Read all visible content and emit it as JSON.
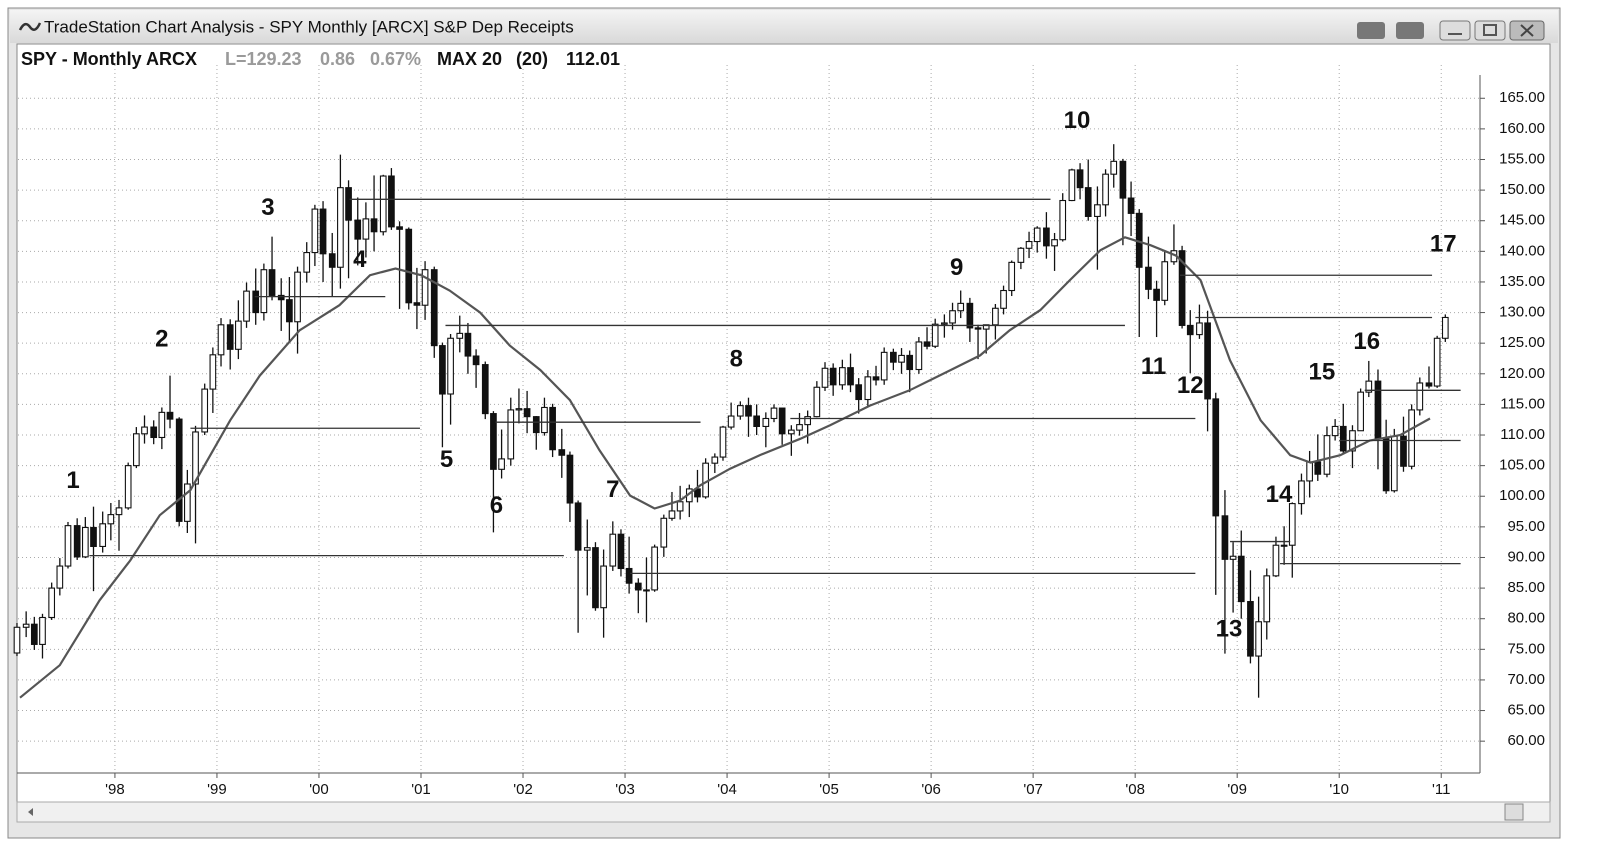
{
  "chart_data": {
    "type": "candlestick",
    "title": "TradeStation Chart Analysis - SPY Monthly [ARCX] S&P Dep Receipts",
    "symbol": "SPY - Monthly ARCX",
    "last": "L=129.23",
    "change": "0.86",
    "change_pct": "0.67%",
    "indicator": "MAX 20",
    "indicator_length": "(20)",
    "indicator_value": "112.01",
    "xlim": [
      1997.05,
      2011.38
    ],
    "ylim": [
      54.8,
      168.8
    ],
    "grid": true,
    "xticks": [
      {
        "value": 1998,
        "label": "'98"
      },
      {
        "value": 1999,
        "label": "'99"
      },
      {
        "value": 2000,
        "label": "'00"
      },
      {
        "value": 2001,
        "label": "'01"
      },
      {
        "value": 2002,
        "label": "'02"
      },
      {
        "value": 2003,
        "label": "'03"
      },
      {
        "value": 2004,
        "label": "'04"
      },
      {
        "value": 2005,
        "label": "'05"
      },
      {
        "value": 2006,
        "label": "'06"
      },
      {
        "value": 2007,
        "label": "'07"
      },
      {
        "value": 2008,
        "label": "'08"
      },
      {
        "value": 2009,
        "label": "'09"
      },
      {
        "value": 2010,
        "label": "'10"
      },
      {
        "value": 2011,
        "label": "'11"
      }
    ],
    "yticks": [
      {
        "value": 60,
        "label": "60.00"
      },
      {
        "value": 65,
        "label": "65.00"
      },
      {
        "value": 70,
        "label": "70.00"
      },
      {
        "value": 75,
        "label": "75.00"
      },
      {
        "value": 80,
        "label": "80.00"
      },
      {
        "value": 85,
        "label": "85.00"
      },
      {
        "value": 90,
        "label": "90.00"
      },
      {
        "value": 95,
        "label": "95.00"
      },
      {
        "value": 100,
        "label": "100.00"
      },
      {
        "value": 105,
        "label": "105.00"
      },
      {
        "value": 110,
        "label": "110.00"
      },
      {
        "value": 115,
        "label": "115.00"
      },
      {
        "value": 120,
        "label": "120.00"
      },
      {
        "value": 125,
        "label": "125.00"
      },
      {
        "value": 130,
        "label": "130.00"
      },
      {
        "value": 135,
        "label": "135.00"
      },
      {
        "value": 140,
        "label": "140.00"
      },
      {
        "value": 145,
        "label": "145.00"
      },
      {
        "value": 150,
        "label": "150.00"
      },
      {
        "value": 155,
        "label": "155.00"
      },
      {
        "value": 160,
        "label": "160.00"
      },
      {
        "value": 165,
        "label": "165.00"
      }
    ],
    "up_color": "#ffffff",
    "down_color": "#111111",
    "x": [
      1997.04,
      1997.13,
      1997.21,
      1997.29,
      1997.38,
      1997.46,
      1997.54,
      1997.63,
      1997.71,
      1997.79,
      1997.88,
      1997.96,
      1998.04,
      1998.13,
      1998.21,
      1998.29,
      1998.38,
      1998.46,
      1998.54,
      1998.63,
      1998.71,
      1998.79,
      1998.88,
      1998.96,
      1999.04,
      1999.13,
      1999.21,
      1999.29,
      1999.38,
      1999.46,
      1999.54,
      1999.63,
      1999.71,
      1999.79,
      1999.88,
      1999.96,
      2000.04,
      2000.13,
      2000.21,
      2000.29,
      2000.38,
      2000.46,
      2000.54,
      2000.63,
      2000.71,
      2000.79,
      2000.88,
      2000.96,
      2001.04,
      2001.13,
      2001.21,
      2001.29,
      2001.38,
      2001.46,
      2001.54,
      2001.63,
      2001.71,
      2001.79,
      2001.88,
      2001.96,
      2002.04,
      2002.13,
      2002.21,
      2002.29,
      2002.38,
      2002.46,
      2002.54,
      2002.63,
      2002.71,
      2002.79,
      2002.88,
      2002.96,
      2003.04,
      2003.13,
      2003.21,
      2003.29,
      2003.38,
      2003.46,
      2003.54,
      2003.63,
      2003.71,
      2003.79,
      2003.88,
      2003.96,
      2004.04,
      2004.13,
      2004.21,
      2004.29,
      2004.38,
      2004.46,
      2004.54,
      2004.63,
      2004.71,
      2004.79,
      2004.88,
      2004.96,
      2005.04,
      2005.13,
      2005.21,
      2005.29,
      2005.38,
      2005.46,
      2005.54,
      2005.63,
      2005.71,
      2005.79,
      2005.88,
      2005.96,
      2006.04,
      2006.13,
      2006.21,
      2006.29,
      2006.38,
      2006.46,
      2006.54,
      2006.63,
      2006.71,
      2006.79,
      2006.88,
      2006.96,
      2007.04,
      2007.13,
      2007.21,
      2007.29,
      2007.38,
      2007.46,
      2007.54,
      2007.63,
      2007.71,
      2007.79,
      2007.88,
      2007.96,
      2008.04,
      2008.13,
      2008.21,
      2008.29,
      2008.38,
      2008.46,
      2008.54,
      2008.63,
      2008.71,
      2008.79,
      2008.88,
      2008.96,
      2009.04,
      2009.13,
      2009.21,
      2009.29,
      2009.38,
      2009.46,
      2009.54,
      2009.63,
      2009.71,
      2009.79,
      2009.88,
      2009.96,
      2010.04,
      2010.13,
      2010.21,
      2010.29,
      2010.38,
      2010.46,
      2010.54,
      2010.63,
      2010.71,
      2010.79,
      2010.88,
      2010.96,
      2011.04
    ],
    "open": [
      74.4,
      78.6,
      79.1,
      75.8,
      80.2,
      85.0,
      88.6,
      95.2,
      90.1,
      94.9,
      91.8,
      95.5,
      97.0,
      98.1,
      105.0,
      110.2,
      111.3,
      109.6,
      113.7,
      112.6,
      95.9,
      102.0,
      110.5,
      117.5,
      123.1,
      128.0,
      124.0,
      128.6,
      133.5,
      130.0,
      137.0,
      132.8,
      132.1,
      128.5,
      136.6,
      139.8,
      146.9,
      139.6,
      137.4,
      150.4,
      145.1,
      142.0,
      145.3,
      143.2,
      152.3,
      144.0,
      143.6,
      131.6,
      131.2,
      137.0,
      124.6,
      116.7,
      125.8,
      126.6,
      122.9,
      121.5,
      113.5,
      104.4,
      106.1,
      114.1,
      114.3,
      113.0,
      110.4,
      114.5,
      107.6,
      106.7,
      98.9,
      91.2,
      91.6,
      81.8,
      88.6,
      93.8,
      88.2,
      85.8,
      84.7,
      84.7,
      91.7,
      96.4,
      97.6,
      99.1,
      101.2,
      99.9,
      105.4,
      106.4,
      111.3,
      113.1,
      114.8,
      113.1,
      111.4,
      112.7,
      114.4,
      110.2,
      110.8,
      111.7,
      113.0,
      117.8,
      120.9,
      118.2,
      121.0,
      118.2,
      115.8,
      119.5,
      119.0,
      123.5,
      121.9,
      123.0,
      120.7,
      125.2,
      124.5,
      128.1,
      128.3,
      130.3,
      131.5,
      127.5,
      127.3,
      128.0,
      130.7,
      133.6,
      138.2,
      140.5,
      141.6,
      143.8,
      140.9,
      141.9,
      148.3,
      153.3,
      150.4,
      145.7,
      147.6,
      152.6,
      154.7,
      148.7,
      146.2,
      137.4,
      133.8,
      132.0,
      138.3,
      140.1,
      127.9,
      126.4,
      128.3,
      115.9,
      96.8,
      89.7,
      90.2,
      82.8,
      73.9,
      79.5,
      87.0,
      92.0,
      92.0,
      98.8,
      102.5,
      105.6,
      103.6,
      109.9,
      111.4,
      107.4,
      110.7,
      117.0,
      118.8,
      109.4,
      100.9,
      109.8,
      104.9,
      114.1,
      118.5,
      118.0,
      125.8
    ],
    "high": [
      79.3,
      81.2,
      80.3,
      80.8,
      85.9,
      89.9,
      95.8,
      96.4,
      96.6,
      98.3,
      97.5,
      98.9,
      99.4,
      105.5,
      111.3,
      113.2,
      112.4,
      114.5,
      119.7,
      112.9,
      104.3,
      111.5,
      118.4,
      124.3,
      129.1,
      128.9,
      132.0,
      134.9,
      137.2,
      138.0,
      142.4,
      135.6,
      135.8,
      137.5,
      141.5,
      147.6,
      148.2,
      143.0,
      155.8,
      151.6,
      148.8,
      148.0,
      152.4,
      152.5,
      153.6,
      144.9,
      143.9,
      137.3,
      138.4,
      137.5,
      125.1,
      126.5,
      129.5,
      128.3,
      124.0,
      122.0,
      113.9,
      110.9,
      116.1,
      117.6,
      117.2,
      113.1,
      116.1,
      115.1,
      111.0,
      107.3,
      99.3,
      96.2,
      92.5,
      91.3,
      95.9,
      94.6,
      93.4,
      86.6,
      90.0,
      92.1,
      97.0,
      100.7,
      101.7,
      101.9,
      104.3,
      106.2,
      107.0,
      111.5,
      115.3,
      115.5,
      116.1,
      115.0,
      113.7,
      115.0,
      114.4,
      111.6,
      113.6,
      114.0,
      118.8,
      121.9,
      121.7,
      122.3,
      123.3,
      119.3,
      120.6,
      121.3,
      124.3,
      124.1,
      124.2,
      123.8,
      126.0,
      127.6,
      129.0,
      129.7,
      131.6,
      133.6,
      132.4,
      128.0,
      128.0,
      131.4,
      134.4,
      138.5,
      140.7,
      143.2,
      144.1,
      146.4,
      143.0,
      149.5,
      153.5,
      154.4,
      155.0,
      150.6,
      153.4,
      157.5,
      155.1,
      151.4,
      146.9,
      142.4,
      135.2,
      140.2,
      144.4,
      140.9,
      130.4,
      131.3,
      130.3,
      116.9,
      101.0,
      92.5,
      94.4,
      87.9,
      83.6,
      88.2,
      93.4,
      95.1,
      99.0,
      103.7,
      107.4,
      110.1,
      111.4,
      112.6,
      115.1,
      111.6,
      117.6,
      122.1,
      120.7,
      112.5,
      111.0,
      113.0,
      115.0,
      119.4,
      121.2,
      126.2,
      129.7
    ],
    "low": [
      73.9,
      77.0,
      74.9,
      73.5,
      79.8,
      83.8,
      88.2,
      89.6,
      89.9,
      84.5,
      90.8,
      92.8,
      91.1,
      97.8,
      104.6,
      108.6,
      108.5,
      107.7,
      111.1,
      95.1,
      94.0,
      92.3,
      110.0,
      113.6,
      121.2,
      120.7,
      122.4,
      127.5,
      128.0,
      128.7,
      132.0,
      127.0,
      125.3,
      123.3,
      134.9,
      137.6,
      135.0,
      132.6,
      133.9,
      135.6,
      137.7,
      139.0,
      140.0,
      142.6,
      143.5,
      130.6,
      130.5,
      127.3,
      128.8,
      122.6,
      108.0,
      111.7,
      123.5,
      120.0,
      117.7,
      112.6,
      94.1,
      102.9,
      105.0,
      111.9,
      110.3,
      107.6,
      109.9,
      106.4,
      103.0,
      95.8,
      77.7,
      83.8,
      81.3,
      76.9,
      87.8,
      86.9,
      84.1,
      80.9,
      79.4,
      84.4,
      90.1,
      96.0,
      96.2,
      96.6,
      99.0,
      99.6,
      103.8,
      105.8,
      110.9,
      112.5,
      109.7,
      110.0,
      108.0,
      112.1,
      108.4,
      106.6,
      109.9,
      108.6,
      112.9,
      117.2,
      116.4,
      117.4,
      117.0,
      113.5,
      114.6,
      118.1,
      118.2,
      120.6,
      120.0,
      117.0,
      120.0,
      124.0,
      124.2,
      125.9,
      127.2,
      129.1,
      125.2,
      122.4,
      123.3,
      125.6,
      129.7,
      132.7,
      137.1,
      138.9,
      139.8,
      138.8,
      136.8,
      141.6,
      148.2,
      148.5,
      145.0,
      137.0,
      145.7,
      150.4,
      141.0,
      142.5,
      126.0,
      132.2,
      126.0,
      131.2,
      137.8,
      127.4,
      120.1,
      125.7,
      110.6,
      83.9,
      74.3,
      81.0,
      80.0,
      72.7,
      67.1,
      76.6,
      86.8,
      88.8,
      86.7,
      97.0,
      99.8,
      102.5,
      103.1,
      109.1,
      107.0,
      104.6,
      110.7,
      116.2,
      104.4,
      100.4,
      100.6,
      104.0,
      104.4,
      113.2,
      117.6,
      117.7,
      125.2
    ],
    "close": [
      78.6,
      79.1,
      75.8,
      80.2,
      85.0,
      88.6,
      95.2,
      90.1,
      94.9,
      91.8,
      95.5,
      97.0,
      98.1,
      105.0,
      110.2,
      111.3,
      109.6,
      113.7,
      112.6,
      95.9,
      102.0,
      110.5,
      117.5,
      123.1,
      128.0,
      124.0,
      128.6,
      133.5,
      130.0,
      137.0,
      132.8,
      132.1,
      128.5,
      136.6,
      139.8,
      146.9,
      139.6,
      137.4,
      150.4,
      145.1,
      142.0,
      145.3,
      143.2,
      152.3,
      144.0,
      143.6,
      131.6,
      131.2,
      137.0,
      124.6,
      116.7,
      125.8,
      126.6,
      122.9,
      121.5,
      113.5,
      104.4,
      106.1,
      114.1,
      114.3,
      113.0,
      110.4,
      114.5,
      107.6,
      106.7,
      98.9,
      91.2,
      91.6,
      81.8,
      88.6,
      93.8,
      88.2,
      85.8,
      84.7,
      84.7,
      91.7,
      96.4,
      97.6,
      99.1,
      101.2,
      99.9,
      105.4,
      106.4,
      111.3,
      113.1,
      114.8,
      113.1,
      111.4,
      112.7,
      114.4,
      110.2,
      110.8,
      111.7,
      113.0,
      117.8,
      120.9,
      118.2,
      121.0,
      118.2,
      115.8,
      119.5,
      119.0,
      123.5,
      121.9,
      123.0,
      120.7,
      125.2,
      124.5,
      128.1,
      128.3,
      130.3,
      131.5,
      127.5,
      127.3,
      128.0,
      130.7,
      133.6,
      138.2,
      140.5,
      141.6,
      143.8,
      140.9,
      141.9,
      148.3,
      153.3,
      150.4,
      145.7,
      147.6,
      152.6,
      154.7,
      148.7,
      146.2,
      137.4,
      133.8,
      132.0,
      138.3,
      140.1,
      127.9,
      126.4,
      128.3,
      115.9,
      96.8,
      89.7,
      90.2,
      82.8,
      73.9,
      79.5,
      87.0,
      92.0,
      92.0,
      98.8,
      102.5,
      105.6,
      103.6,
      109.9,
      111.4,
      107.4,
      110.7,
      117.0,
      118.8,
      109.4,
      100.9,
      109.8,
      104.9,
      114.1,
      118.5,
      118.0,
      125.8,
      129.2
    ],
    "moving_average": {
      "color": "#555555",
      "x": [
        1997.07,
        1997.46,
        1997.85,
        1998.15,
        1998.44,
        1998.74,
        1999.13,
        1999.42,
        1999.81,
        2000.2,
        2000.5,
        2000.75,
        2001.0,
        2001.28,
        2001.58,
        2001.87,
        2002.17,
        2002.46,
        2002.75,
        2003.05,
        2003.29,
        2003.54,
        2003.74,
        2004.03,
        2004.32,
        2004.72,
        2005.01,
        2005.4,
        2005.79,
        2006.19,
        2006.48,
        2006.77,
        2007.07,
        2007.36,
        2007.66,
        2007.9,
        2008.15,
        2008.4,
        2008.64,
        2008.93,
        2009.23,
        2009.52,
        2009.72,
        2010.01,
        2010.3,
        2010.6,
        2010.89
      ],
      "values": [
        67.1,
        72.4,
        83.0,
        89.5,
        96.9,
        101.0,
        112.4,
        119.7,
        127.1,
        131.2,
        136.1,
        137.2,
        136.1,
        133.6,
        130.0,
        124.6,
        120.6,
        115.7,
        107.5,
        100.1,
        98.0,
        99.3,
        101.8,
        104.5,
        106.7,
        109.4,
        111.6,
        114.8,
        117.3,
        120.6,
        123.0,
        127.1,
        130.4,
        135.3,
        140.2,
        142.3,
        141.0,
        139.3,
        135.3,
        122.2,
        112.4,
        106.7,
        105.5,
        106.7,
        109.1,
        110.0,
        112.7
      ]
    },
    "levels": [
      {
        "value": 90.3,
        "x": [
          1997.75,
          2002.4
        ]
      },
      {
        "value": 111.1,
        "x": [
          1998.74,
          2000.99
        ]
      },
      {
        "value": 132.6,
        "x": [
          1999.37,
          2000.65
        ]
      },
      {
        "value": 148.5,
        "x": [
          2000.3,
          2007.17
        ]
      },
      {
        "value": 127.9,
        "x": [
          2001.24,
          2007.9
        ]
      },
      {
        "value": 112.1,
        "x": [
          2001.73,
          2003.74
        ]
      },
      {
        "value": 87.4,
        "x": [
          2003.05,
          2008.59
        ]
      },
      {
        "value": 112.7,
        "x": [
          2004.62,
          2008.59
        ]
      },
      {
        "value": 136.1,
        "x": [
          2008.44,
          2010.91
        ]
      },
      {
        "value": 129.2,
        "x": [
          2008.59,
          2010.91
        ]
      },
      {
        "value": 92.6,
        "x": [
          2008.93,
          2009.52
        ]
      },
      {
        "value": 89.0,
        "x": [
          2009.42,
          2011.19
        ]
      },
      {
        "value": 117.3,
        "x": [
          2010.25,
          2011.19
        ]
      },
      {
        "value": 109.1,
        "x": [
          2010.0,
          2011.19
        ]
      }
    ],
    "annotations": [
      {
        "text": "1",
        "x": 1997.59,
        "y": 102.4
      },
      {
        "text": "2",
        "x": 1998.46,
        "y": 125.5
      },
      {
        "text": "3",
        "x": 1999.5,
        "y": 147.0
      },
      {
        "text": "4",
        "x": 2000.4,
        "y": 138.5
      },
      {
        "text": "5",
        "x": 2001.25,
        "y": 105.8
      },
      {
        "text": "6",
        "x": 2001.74,
        "y": 98.3
      },
      {
        "text": "7",
        "x": 2002.88,
        "y": 100.9
      },
      {
        "text": "8",
        "x": 2004.09,
        "y": 122.2
      },
      {
        "text": "9",
        "x": 2006.25,
        "y": 137.2
      },
      {
        "text": "10",
        "x": 2007.43,
        "y": 161.2
      },
      {
        "text": "11",
        "x": 2008.18,
        "y": 121.0
      },
      {
        "text": "12",
        "x": 2008.54,
        "y": 117.9
      },
      {
        "text": "13",
        "x": 2008.92,
        "y": 78.1
      },
      {
        "text": "14",
        "x": 2009.41,
        "y": 100.1
      },
      {
        "text": "15",
        "x": 2009.83,
        "y": 120.1
      },
      {
        "text": "16",
        "x": 2010.27,
        "y": 125.1
      },
      {
        "text": "17",
        "x": 2011.02,
        "y": 141.0
      }
    ]
  }
}
